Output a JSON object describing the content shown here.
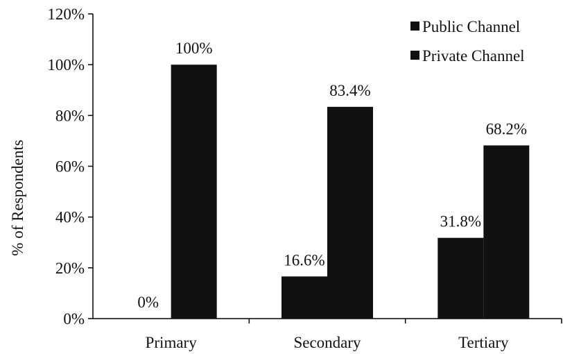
{
  "chart_data": {
    "type": "bar",
    "title": "",
    "xlabel": "",
    "ylabel": "% of Respondents",
    "categories": [
      "Primary",
      "Secondary",
      "Tertiary"
    ],
    "series": [
      {
        "name": "Public Channel",
        "values": [
          0,
          16.6,
          31.8
        ],
        "labels": [
          "0%",
          "16.6%",
          "31.8%"
        ]
      },
      {
        "name": "Private Channel",
        "values": [
          100,
          83.4,
          68.2
        ],
        "labels": [
          "100%",
          "83.4%",
          "68.2%"
        ]
      }
    ],
    "ylim": [
      0,
      120
    ],
    "yticks": [
      0,
      20,
      40,
      60,
      80,
      100,
      120
    ],
    "ytick_labels": [
      "0%",
      "20%",
      "40%",
      "60%",
      "80%",
      "100%",
      "120%"
    ],
    "grid": false,
    "legend": "top-right",
    "colors": {
      "bars": "#111111",
      "axis": "#000000"
    }
  }
}
